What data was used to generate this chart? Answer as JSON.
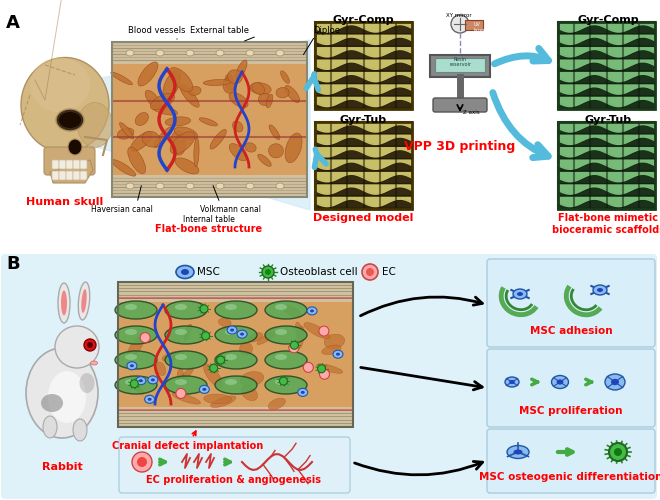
{
  "panel_a_label": "A",
  "panel_b_label": "B",
  "bg_color": "#ffffff",
  "light_blue_bg": "#c8e8f5",
  "skull_label": "Human skull",
  "skull_label_color": "#ff0000",
  "flat_bone_label": "Flat-bone structure",
  "flat_bone_color": "#ff0000",
  "gyr_comp_label": "Gyr-Comp",
  "gyr_tub_label": "Gyr-Tub",
  "vpp_label": "VPP 3D printing",
  "vpp_color": "#ff0000",
  "designed_model_label": "Designed model",
  "designed_model_color": "#ff0000",
  "scaffold_label": "Flat-bone mimetic\nbioceramic scaffolds",
  "scaffold_label_color": "#ff0000",
  "legend_msc": "MSC",
  "legend_ob": "Osteoblast cell",
  "legend_ec": "EC",
  "rabbit_label": "Rabbit",
  "rabbit_label_color": "#ff0000",
  "cranial_label": "Cranial defect implantation",
  "cranial_color": "#ff0000",
  "ec_label": "EC proliferation & angiogenesis",
  "ec_color": "#ff0000",
  "msc_adhesion_label": "MSC adhesion",
  "msc_prolif_label": "MSC proliferation",
  "msc_diff_label": "MSC osteogenic differentiation",
  "out_label_color": "#ff0000",
  "vessel_red": "#cc2222",
  "vessel_blue": "#2244cc",
  "arrow_color": "#55bbdd",
  "bone_cortex": "#c8b898",
  "bone_diploe": "#d4a870",
  "trabecula_fill": "#c07840",
  "trabecula_edge": "#a06030"
}
